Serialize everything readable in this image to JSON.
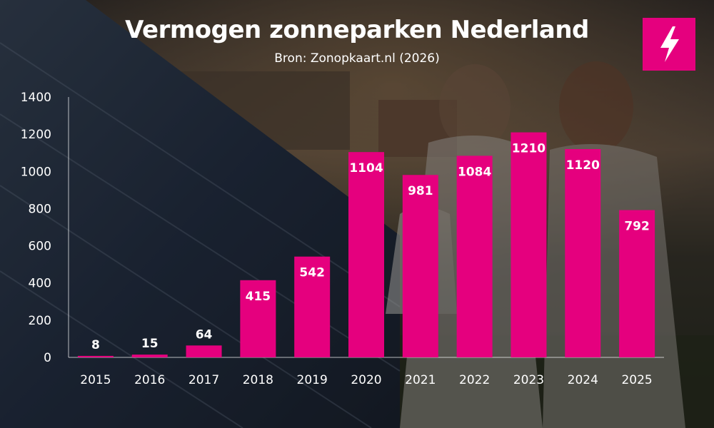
{
  "header": {
    "title": "Vermogen zonneparken Nederland",
    "subtitle": "Bron: Zonopkaart.nl (2026)"
  },
  "logo": {
    "icon": "lightning-bolt-icon",
    "color": "#e5007e"
  },
  "colors": {
    "bar": "#e5007e",
    "text": "#ffffff"
  },
  "chart_data": {
    "type": "bar",
    "title": "Vermogen zonneparken Nederland",
    "subtitle": "Bron: Zonopkaart.nl (2026)",
    "categories": [
      "2015",
      "2016",
      "2017",
      "2018",
      "2019",
      "2020",
      "2021",
      "2022",
      "2023",
      "2024",
      "2025"
    ],
    "values": [
      8,
      15,
      64,
      415,
      542,
      1104,
      981,
      1084,
      1210,
      1120,
      792
    ],
    "data_labels": [
      "8",
      "15",
      "64",
      "415",
      "542",
      "1104",
      "981",
      "1084",
      "1210",
      "1120",
      "792"
    ],
    "yticks": [
      "0",
      "200",
      "400",
      "600",
      "800",
      "1000",
      "1200",
      "1400"
    ],
    "ylim": [
      0,
      1400
    ],
    "grid": false,
    "legend": "none"
  }
}
